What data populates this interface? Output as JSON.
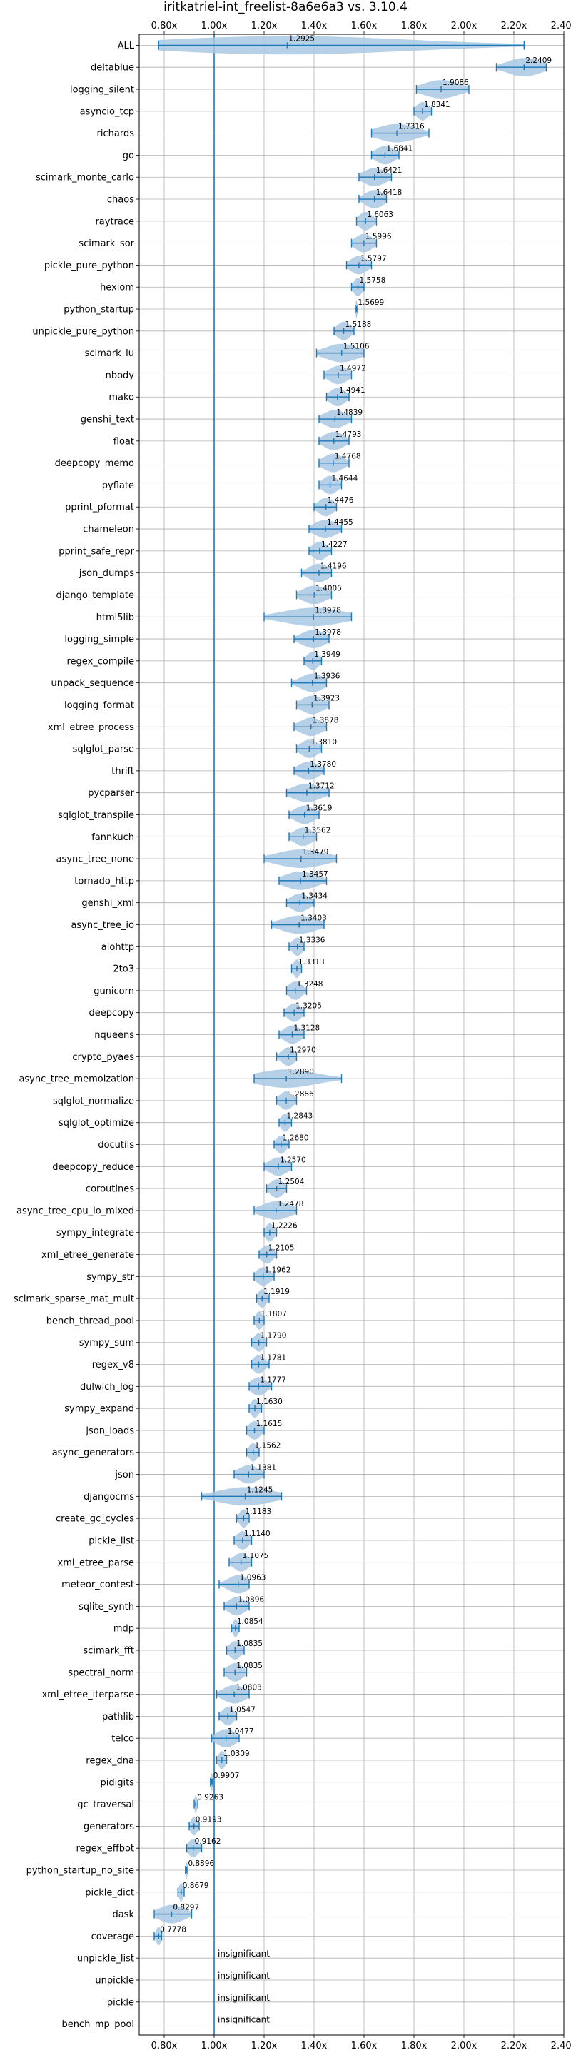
{
  "chart_data": {
    "type": "violin",
    "title": "iritkatriel-int_freelist-8a6e6a3 vs. 3.10.4",
    "xlabel": "",
    "ylabel": "",
    "xlim": [
      0.7,
      2.4
    ],
    "x_ticks": [
      0.8,
      1.0,
      1.2,
      1.4,
      1.6,
      1.8,
      2.0,
      2.2,
      2.4
    ],
    "x_tick_labels": [
      "0.80x",
      "1.00x",
      "1.20x",
      "1.40x",
      "1.60x",
      "1.80x",
      "2.00x",
      "2.20x",
      "2.40x"
    ],
    "reference_line": 1.0,
    "grid": true,
    "colors": {
      "violin": "#a9c8e4",
      "line": "#1f77b4",
      "grid": "#b0b0b0",
      "reference": "#1f77b4"
    },
    "insignificant_label": "insignificant",
    "benchmarks": [
      {
        "name": "ALL",
        "median": 1.2925,
        "min": 0.7778,
        "max": 2.2409,
        "label": "1.2925"
      },
      {
        "name": "deltablue",
        "median": 2.2409,
        "min": 2.13,
        "max": 2.33,
        "label": "2.2409"
      },
      {
        "name": "logging_silent",
        "median": 1.9086,
        "min": 1.81,
        "max": 2.02,
        "label": "1.9086"
      },
      {
        "name": "asyncio_tcp",
        "median": 1.8341,
        "min": 1.8,
        "max": 1.87,
        "label": "1.8341"
      },
      {
        "name": "richards",
        "median": 1.7316,
        "min": 1.63,
        "max": 1.86,
        "label": "1.7316"
      },
      {
        "name": "go",
        "median": 1.6841,
        "min": 1.63,
        "max": 1.74,
        "label": "1.6841"
      },
      {
        "name": "scimark_monte_carlo",
        "median": 1.6421,
        "min": 1.58,
        "max": 1.71,
        "label": "1.6421"
      },
      {
        "name": "chaos",
        "median": 1.6418,
        "min": 1.58,
        "max": 1.69,
        "label": "1.6418"
      },
      {
        "name": "raytrace",
        "median": 1.6063,
        "min": 1.57,
        "max": 1.65,
        "label": "1.6063"
      },
      {
        "name": "scimark_sor",
        "median": 1.5996,
        "min": 1.55,
        "max": 1.65,
        "label": "1.5996"
      },
      {
        "name": "pickle_pure_python",
        "median": 1.5797,
        "min": 1.53,
        "max": 1.63,
        "label": "1.5797"
      },
      {
        "name": "hexiom",
        "median": 1.5758,
        "min": 1.55,
        "max": 1.6,
        "label": "1.5758"
      },
      {
        "name": "python_startup",
        "median": 1.5699,
        "min": 1.565,
        "max": 1.575,
        "label": "1.5699"
      },
      {
        "name": "unpickle_pure_python",
        "median": 1.5188,
        "min": 1.48,
        "max": 1.56,
        "label": "1.5188"
      },
      {
        "name": "scimark_lu",
        "median": 1.5106,
        "min": 1.41,
        "max": 1.6,
        "label": "1.5106"
      },
      {
        "name": "nbody",
        "median": 1.4972,
        "min": 1.44,
        "max": 1.55,
        "label": "1.4972"
      },
      {
        "name": "mako",
        "median": 1.4941,
        "min": 1.45,
        "max": 1.54,
        "label": "1.4941"
      },
      {
        "name": "genshi_text",
        "median": 1.4839,
        "min": 1.42,
        "max": 1.55,
        "label": "1.4839"
      },
      {
        "name": "float",
        "median": 1.4793,
        "min": 1.42,
        "max": 1.54,
        "label": "1.4793"
      },
      {
        "name": "deepcopy_memo",
        "median": 1.4768,
        "min": 1.42,
        "max": 1.54,
        "label": "1.4768"
      },
      {
        "name": "pyflate",
        "median": 1.4644,
        "min": 1.42,
        "max": 1.51,
        "label": "1.4644"
      },
      {
        "name": "pprint_pformat",
        "median": 1.4476,
        "min": 1.4,
        "max": 1.49,
        "label": "1.4476"
      },
      {
        "name": "chameleon",
        "median": 1.4455,
        "min": 1.38,
        "max": 1.51,
        "label": "1.4455"
      },
      {
        "name": "pprint_safe_repr",
        "median": 1.4227,
        "min": 1.38,
        "max": 1.47,
        "label": "1.4227"
      },
      {
        "name": "json_dumps",
        "median": 1.4196,
        "min": 1.35,
        "max": 1.47,
        "label": "1.4196"
      },
      {
        "name": "django_template",
        "median": 1.4005,
        "min": 1.33,
        "max": 1.47,
        "label": "1.4005"
      },
      {
        "name": "html5lib",
        "median": 1.3978,
        "min": 1.2,
        "max": 1.55,
        "label": "1.3978"
      },
      {
        "name": "logging_simple",
        "median": 1.3978,
        "min": 1.32,
        "max": 1.46,
        "label": "1.3978"
      },
      {
        "name": "regex_compile",
        "median": 1.3949,
        "min": 1.36,
        "max": 1.43,
        "label": "1.3949"
      },
      {
        "name": "unpack_sequence",
        "median": 1.3936,
        "min": 1.31,
        "max": 1.45,
        "label": "1.3936"
      },
      {
        "name": "logging_format",
        "median": 1.3923,
        "min": 1.33,
        "max": 1.46,
        "label": "1.3923"
      },
      {
        "name": "xml_etree_process",
        "median": 1.3878,
        "min": 1.32,
        "max": 1.45,
        "label": "1.3878"
      },
      {
        "name": "sqlglot_parse",
        "median": 1.381,
        "min": 1.33,
        "max": 1.43,
        "label": "1.3810"
      },
      {
        "name": "thrift",
        "median": 1.378,
        "min": 1.32,
        "max": 1.44,
        "label": "1.3780"
      },
      {
        "name": "pycparser",
        "median": 1.3712,
        "min": 1.29,
        "max": 1.46,
        "label": "1.3712"
      },
      {
        "name": "sqlglot_transpile",
        "median": 1.3619,
        "min": 1.3,
        "max": 1.42,
        "label": "1.3619"
      },
      {
        "name": "fannkuch",
        "median": 1.3562,
        "min": 1.3,
        "max": 1.41,
        "label": "1.3562"
      },
      {
        "name": "async_tree_none",
        "median": 1.3479,
        "min": 1.2,
        "max": 1.49,
        "label": "1.3479"
      },
      {
        "name": "tornado_http",
        "median": 1.3457,
        "min": 1.26,
        "max": 1.45,
        "label": "1.3457"
      },
      {
        "name": "genshi_xml",
        "median": 1.3434,
        "min": 1.29,
        "max": 1.4,
        "label": "1.3434"
      },
      {
        "name": "async_tree_io",
        "median": 1.3403,
        "min": 1.23,
        "max": 1.44,
        "label": "1.3403"
      },
      {
        "name": "aiohttp",
        "median": 1.3336,
        "min": 1.3,
        "max": 1.36,
        "label": "1.3336"
      },
      {
        "name": "2to3",
        "median": 1.3313,
        "min": 1.31,
        "max": 1.35,
        "label": "1.3313"
      },
      {
        "name": "gunicorn",
        "median": 1.3248,
        "min": 1.29,
        "max": 1.37,
        "label": "1.3248"
      },
      {
        "name": "deepcopy",
        "median": 1.3205,
        "min": 1.28,
        "max": 1.36,
        "label": "1.3205"
      },
      {
        "name": "nqueens",
        "median": 1.3128,
        "min": 1.26,
        "max": 1.36,
        "label": "1.3128"
      },
      {
        "name": "crypto_pyaes",
        "median": 1.297,
        "min": 1.25,
        "max": 1.33,
        "label": "1.2970"
      },
      {
        "name": "async_tree_memoization",
        "median": 1.289,
        "min": 1.16,
        "max": 1.51,
        "label": "1.2890"
      },
      {
        "name": "sqlglot_normalize",
        "median": 1.2886,
        "min": 1.25,
        "max": 1.33,
        "label": "1.2886"
      },
      {
        "name": "sqlglot_optimize",
        "median": 1.2843,
        "min": 1.26,
        "max": 1.31,
        "label": "1.2843"
      },
      {
        "name": "docutils",
        "median": 1.268,
        "min": 1.24,
        "max": 1.3,
        "label": "1.2680"
      },
      {
        "name": "deepcopy_reduce",
        "median": 1.257,
        "min": 1.2,
        "max": 1.31,
        "label": "1.2570"
      },
      {
        "name": "coroutines",
        "median": 1.2504,
        "min": 1.21,
        "max": 1.29,
        "label": "1.2504"
      },
      {
        "name": "async_tree_cpu_io_mixed",
        "median": 1.2478,
        "min": 1.16,
        "max": 1.33,
        "label": "1.2478"
      },
      {
        "name": "sympy_integrate",
        "median": 1.2226,
        "min": 1.2,
        "max": 1.25,
        "label": "1.2226"
      },
      {
        "name": "xml_etree_generate",
        "median": 1.2105,
        "min": 1.18,
        "max": 1.25,
        "label": "1.2105"
      },
      {
        "name": "sympy_str",
        "median": 1.1962,
        "min": 1.16,
        "max": 1.24,
        "label": "1.1962"
      },
      {
        "name": "scimark_sparse_mat_mult",
        "median": 1.1919,
        "min": 1.17,
        "max": 1.22,
        "label": "1.1919"
      },
      {
        "name": "bench_thread_pool",
        "median": 1.1807,
        "min": 1.16,
        "max": 1.2,
        "label": "1.1807"
      },
      {
        "name": "sympy_sum",
        "median": 1.179,
        "min": 1.15,
        "max": 1.21,
        "label": "1.1790"
      },
      {
        "name": "regex_v8",
        "median": 1.1781,
        "min": 1.15,
        "max": 1.22,
        "label": "1.1781"
      },
      {
        "name": "dulwich_log",
        "median": 1.1777,
        "min": 1.14,
        "max": 1.23,
        "label": "1.1777"
      },
      {
        "name": "sympy_expand",
        "median": 1.163,
        "min": 1.14,
        "max": 1.19,
        "label": "1.1630"
      },
      {
        "name": "json_loads",
        "median": 1.1615,
        "min": 1.13,
        "max": 1.2,
        "label": "1.1615"
      },
      {
        "name": "async_generators",
        "median": 1.1562,
        "min": 1.13,
        "max": 1.18,
        "label": "1.1562"
      },
      {
        "name": "json",
        "median": 1.1381,
        "min": 1.08,
        "max": 1.2,
        "label": "1.1381"
      },
      {
        "name": "djangocms",
        "median": 1.1245,
        "min": 0.95,
        "max": 1.27,
        "label": "1.1245"
      },
      {
        "name": "create_gc_cycles",
        "median": 1.1183,
        "min": 1.09,
        "max": 1.14,
        "label": "1.1183"
      },
      {
        "name": "pickle_list",
        "median": 1.114,
        "min": 1.08,
        "max": 1.15,
        "label": "1.1140"
      },
      {
        "name": "xml_etree_parse",
        "median": 1.1075,
        "min": 1.06,
        "max": 1.15,
        "label": "1.1075"
      },
      {
        "name": "meteor_contest",
        "median": 1.0963,
        "min": 1.02,
        "max": 1.14,
        "label": "1.0963"
      },
      {
        "name": "sqlite_synth",
        "median": 1.0896,
        "min": 1.04,
        "max": 1.14,
        "label": "1.0896"
      },
      {
        "name": "mdp",
        "median": 1.0854,
        "min": 1.07,
        "max": 1.1,
        "label": "1.0854"
      },
      {
        "name": "scimark_fft",
        "median": 1.0835,
        "min": 1.05,
        "max": 1.12,
        "label": "1.0835"
      },
      {
        "name": "spectral_norm",
        "median": 1.0835,
        "min": 1.04,
        "max": 1.13,
        "label": "1.0835"
      },
      {
        "name": "xml_etree_iterparse",
        "median": 1.0803,
        "min": 1.01,
        "max": 1.14,
        "label": "1.0803"
      },
      {
        "name": "pathlib",
        "median": 1.0547,
        "min": 1.02,
        "max": 1.09,
        "label": "1.0547"
      },
      {
        "name": "telco",
        "median": 1.0477,
        "min": 0.99,
        "max": 1.1,
        "label": "1.0477"
      },
      {
        "name": "regex_dna",
        "median": 1.0309,
        "min": 1.01,
        "max": 1.05,
        "label": "1.0309"
      },
      {
        "name": "pidigits",
        "median": 0.9907,
        "min": 0.985,
        "max": 0.995,
        "label": "0.9907"
      },
      {
        "name": "gc_traversal",
        "median": 0.9263,
        "min": 0.92,
        "max": 0.935,
        "label": "0.9263"
      },
      {
        "name": "generators",
        "median": 0.9193,
        "min": 0.9,
        "max": 0.94,
        "label": "0.9193"
      },
      {
        "name": "regex_effbot",
        "median": 0.9162,
        "min": 0.89,
        "max": 0.95,
        "label": "0.9162"
      },
      {
        "name": "python_startup_no_site",
        "median": 0.8896,
        "min": 0.885,
        "max": 0.895,
        "label": "0.8896"
      },
      {
        "name": "pickle_dict",
        "median": 0.8679,
        "min": 0.855,
        "max": 0.88,
        "label": "0.8679"
      },
      {
        "name": "dask",
        "median": 0.8297,
        "min": 0.76,
        "max": 0.91,
        "label": "0.8297"
      },
      {
        "name": "coverage",
        "median": 0.7778,
        "min": 0.76,
        "max": 0.79,
        "label": "0.7778"
      },
      {
        "name": "unpickle_list",
        "insignificant": true
      },
      {
        "name": "unpickle",
        "insignificant": true
      },
      {
        "name": "pickle",
        "insignificant": true
      },
      {
        "name": "bench_mp_pool",
        "insignificant": true
      }
    ]
  }
}
